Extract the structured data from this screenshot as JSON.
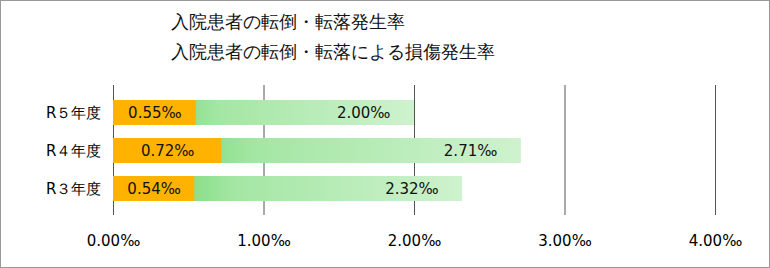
{
  "chart_data": {
    "type": "bar",
    "orientation": "horizontal",
    "stacked": false,
    "categories": [
      "R５年度",
      "R４年度",
      "R３年度"
    ],
    "series": [
      {
        "name": "入院患者の転倒・転落発生率",
        "color": "#5ad25a",
        "values": [
          2.0,
          2.71,
          2.32
        ],
        "value_labels": [
          "2.00‰",
          "2.71‰",
          "2.32‰"
        ]
      },
      {
        "name": "入院患者の転倒・転落による損傷発生率",
        "color": "#ffb300",
        "values": [
          0.55,
          0.72,
          0.54
        ],
        "value_labels": [
          "0.55‰",
          "0.72‰",
          "0.54‰"
        ]
      }
    ],
    "xlim": [
      0,
      4
    ],
    "xticks": [
      {
        "value": 0,
        "label": "0.00‰"
      },
      {
        "value": 1,
        "label": "1.00‰"
      },
      {
        "value": 2,
        "label": "2.00‰"
      },
      {
        "value": 3,
        "label": "3.00‰"
      },
      {
        "value": 4,
        "label": "4.00‰"
      }
    ],
    "grid": true,
    "data_labels": true
  }
}
